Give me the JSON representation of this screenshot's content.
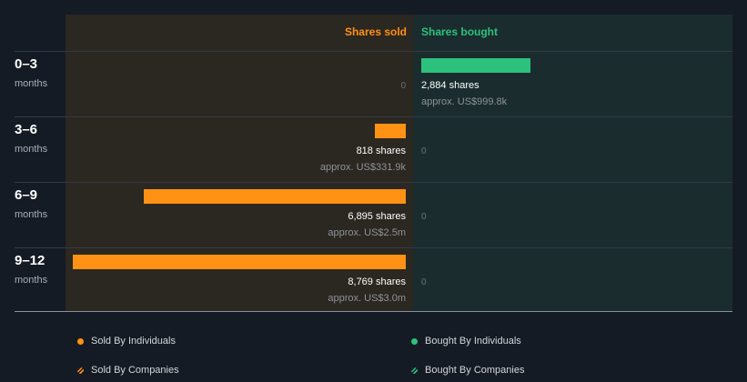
{
  "header": {
    "sold_label": "Shares sold",
    "bought_label": "Shares bought"
  },
  "colors": {
    "sold": "#ff9214",
    "bought": "#2cc17c"
  },
  "chart_data": {
    "type": "bar",
    "categories": [
      "0–3",
      "3–6",
      "6–9",
      "9–12"
    ],
    "unit_label": "months",
    "series": [
      {
        "name": "Shares sold",
        "values": [
          0,
          818,
          6895,
          8769
        ],
        "shares_labels": [
          "",
          "818 shares",
          "6,895 shares",
          "8,769 shares"
        ],
        "approx_labels": [
          "",
          "approx. US$331.9k",
          "approx. US$2.5m",
          "approx. US$3.0m"
        ]
      },
      {
        "name": "Shares bought",
        "values": [
          2884,
          0,
          0,
          0
        ],
        "shares_labels": [
          "2,884 shares",
          "",
          "",
          ""
        ],
        "approx_labels": [
          "approx. US$999.8k",
          "",
          "",
          ""
        ]
      }
    ],
    "zero_label": "0",
    "xmax": 8769
  },
  "legend": [
    {
      "label": "Sold By Individuals",
      "icon": "dot-icon",
      "color": "#ff9214"
    },
    {
      "label": "Bought By Individuals",
      "icon": "dot-icon",
      "color": "#2cc17c"
    },
    {
      "label": "Sold By Companies",
      "icon": "hatched-dot-icon",
      "color": "#ff9214"
    },
    {
      "label": "Bought By Companies",
      "icon": "hatched-dot-icon",
      "color": "#2cc17c"
    }
  ]
}
